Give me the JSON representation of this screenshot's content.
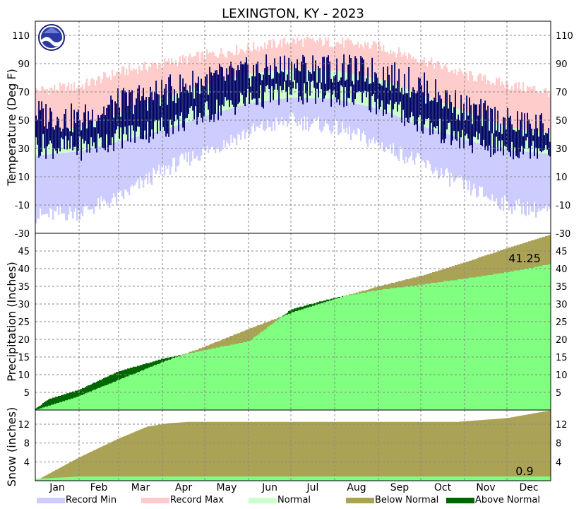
{
  "chart_data": {
    "type": "area",
    "title": "LEXINGTON, KY - 2023",
    "months": [
      "Jan",
      "Feb",
      "Mar",
      "Apr",
      "May",
      "Jun",
      "Jul",
      "Aug",
      "Sep",
      "Oct",
      "Nov",
      "Dec"
    ],
    "legend": [
      {
        "label": "Record Min",
        "color": "#ccccff"
      },
      {
        "label": "Record Max",
        "color": "#ffcccc"
      },
      {
        "label": "Normal",
        "color": "#ccffcc"
      },
      {
        "label": "Below Normal",
        "color": "#aaa355"
      },
      {
        "label": "Above Normal",
        "color": "#006600"
      }
    ],
    "colors": {
      "observed_temp": "#000066",
      "precip_observed": "#80ff80",
      "grid": "#888888"
    },
    "panels": {
      "temperature": {
        "ylabel": "Temperature (Deg F)",
        "ylim": [
          -30,
          120
        ],
        "ticks": [
          110,
          90,
          70,
          50,
          30,
          10,
          -10,
          -30
        ],
        "series_keypoints": {
          "day": [
            1,
            32,
            60,
            91,
            121,
            152,
            182,
            213,
            244,
            274,
            305,
            335,
            365
          ],
          "record_max": [
            71,
            74,
            84,
            90,
            96,
            101,
            106,
            105,
            102,
            93,
            82,
            75,
            70
          ],
          "normal_high": [
            40,
            45,
            55,
            66,
            75,
            83,
            86,
            85,
            79,
            68,
            56,
            45,
            41
          ],
          "normal_low": [
            25,
            28,
            35,
            43,
            53,
            62,
            66,
            65,
            58,
            46,
            36,
            29,
            26
          ],
          "record_min": [
            -18,
            -15,
            -5,
            15,
            28,
            42,
            50,
            45,
            33,
            20,
            3,
            -10,
            -15
          ],
          "observed_high": [
            55,
            50,
            62,
            70,
            78,
            84,
            88,
            86,
            84,
            74,
            58,
            48,
            45
          ],
          "observed_low": [
            32,
            30,
            38,
            45,
            55,
            65,
            70,
            68,
            62,
            48,
            35,
            30,
            32
          ]
        }
      },
      "precipitation": {
        "ylabel": "Precipitation (Inches)",
        "ylim": [
          0,
          50
        ],
        "ticks": [
          5,
          10,
          15,
          20,
          25,
          30,
          35,
          40,
          45
        ],
        "annotation": "41.25",
        "cumulative": {
          "day": [
            1,
            10,
            32,
            60,
            91,
            121,
            152,
            182,
            213,
            244,
            274,
            305,
            335,
            365
          ],
          "observed": [
            0.5,
            3.0,
            5.8,
            11.0,
            14.5,
            17.0,
            19.5,
            28.5,
            31.8,
            34.0,
            35.5,
            37.2,
            39.0,
            41.25
          ],
          "normal": [
            0.1,
            1.2,
            4.0,
            8.6,
            13.6,
            18.0,
            23.0,
            27.5,
            31.5,
            35.0,
            38.0,
            41.8,
            45.8,
            49.5
          ]
        }
      },
      "snow": {
        "ylabel": "Snow (inches)",
        "ylim": [
          0,
          15
        ],
        "ticks": [
          4,
          8,
          12
        ],
        "annotation": "0.9",
        "cumulative": {
          "day": [
            1,
            32,
            60,
            80,
            95,
            110,
            300,
            335,
            365
          ],
          "observed": [
            0.4,
            0.9,
            0.9,
            0.9,
            0.9,
            0.9,
            0.9,
            0.9,
            0.9
          ],
          "normal": [
            0.0,
            5.0,
            9.0,
            11.5,
            12.2,
            12.5,
            12.5,
            13.3,
            14.9
          ]
        }
      }
    }
  }
}
